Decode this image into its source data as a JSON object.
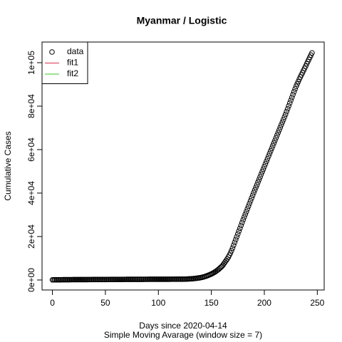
{
  "chart_data": {
    "type": "scatter",
    "title": "Myanmar / Logistic",
    "x_label": "Days since 2020-04-14",
    "subtitle": "Simple Moving Avarage (window size = 7)",
    "y_label": "Cumulative Cases",
    "xlim": [
      -9.8,
      256.5
    ],
    "ylim": [
      -4600,
      109500
    ],
    "xticks": [
      0,
      50,
      100,
      150,
      200,
      250
    ],
    "yticks": [
      {
        "value": 0,
        "label": "0e+00"
      },
      {
        "value": 20000,
        "label": "2e+04"
      },
      {
        "value": 40000,
        "label": "4e+04"
      },
      {
        "value": 60000,
        "label": "6e+04"
      },
      {
        "value": 80000,
        "label": "8e+04"
      },
      {
        "value": 100000,
        "label": "1e+05"
      }
    ],
    "legend_position": "topleft",
    "legend": [
      {
        "name": "data",
        "symbol": "circle",
        "color": "#000000"
      },
      {
        "name": "fit1",
        "symbol": "line",
        "color": "#df536b"
      },
      {
        "name": "fit2",
        "symbol": "line",
        "color": "#61d04f"
      }
    ],
    "series": [
      {
        "name": "data",
        "color": "#000000",
        "x": [
          0,
          1,
          2,
          3,
          4,
          5,
          6,
          7,
          8,
          9,
          10,
          11,
          12,
          13,
          14,
          15,
          16,
          17,
          18,
          19,
          20,
          21,
          22,
          23,
          24,
          25,
          26,
          27,
          28,
          29,
          30,
          31,
          32,
          33,
          34,
          35,
          36,
          37,
          38,
          39,
          40,
          41,
          42,
          43,
          44,
          45,
          46,
          47,
          48,
          49,
          50,
          51,
          52,
          53,
          54,
          55,
          56,
          57,
          58,
          59,
          60,
          61,
          62,
          63,
          64,
          65,
          66,
          67,
          68,
          69,
          70,
          71,
          72,
          73,
          74,
          75,
          76,
          77,
          78,
          79,
          80,
          81,
          82,
          83,
          84,
          85,
          86,
          87,
          88,
          89,
          90,
          91,
          92,
          93,
          94,
          95,
          96,
          97,
          98,
          99,
          100,
          101,
          102,
          103,
          104,
          105,
          106,
          107,
          108,
          109,
          110,
          111,
          112,
          113,
          114,
          115,
          116,
          117,
          118,
          119,
          120,
          121,
          122,
          123,
          124,
          125,
          126,
          127,
          128,
          129,
          130,
          131,
          132,
          133,
          134,
          135,
          136,
          137,
          138,
          139,
          140,
          141,
          142,
          143,
          144,
          145,
          146,
          147,
          148,
          149,
          150,
          151,
          152,
          153,
          154,
          155,
          156,
          157,
          158,
          159,
          160,
          161,
          162,
          163,
          164,
          165,
          166,
          167,
          168,
          169,
          170,
          171,
          172,
          173,
          174,
          175,
          176,
          177,
          178,
          179,
          180,
          181,
          182,
          183,
          184,
          185,
          186,
          187,
          188,
          189,
          190,
          191,
          192,
          193,
          194,
          195,
          196,
          197,
          198,
          199,
          200,
          201,
          202,
          203,
          204,
          205,
          206,
          207,
          208,
          209,
          210,
          211,
          212,
          213,
          214,
          215,
          216,
          217,
          218,
          219,
          220,
          221,
          222,
          223,
          224,
          225,
          226,
          227,
          228,
          229,
          230,
          231,
          232,
          233,
          234,
          235,
          236,
          237,
          238,
          239,
          240,
          241,
          242,
          243,
          244,
          245
        ],
        "values": [
          70,
          75,
          80,
          85,
          90,
          95,
          100,
          105,
          110,
          115,
          120,
          125,
          130,
          135,
          140,
          145,
          150,
          152,
          155,
          157,
          159,
          162,
          164,
          166,
          169,
          171,
          173,
          176,
          178,
          180,
          183,
          185,
          187,
          190,
          192,
          194,
          197,
          199,
          201,
          204,
          206,
          208,
          211,
          213,
          215,
          218,
          220,
          221,
          224,
          227,
          229,
          232,
          235,
          238,
          240,
          243,
          246,
          248,
          251,
          254,
          256,
          259,
          262,
          264,
          267,
          270,
          272,
          275,
          278,
          280,
          283,
          286,
          288,
          291,
          294,
          296,
          299,
          300,
          302,
          303,
          305,
          307,
          308,
          310,
          312,
          313,
          315,
          317,
          318,
          320,
          322,
          323,
          325,
          327,
          328,
          330,
          332,
          333,
          335,
          337,
          338,
          340,
          342,
          343,
          345,
          347,
          348,
          350,
          351,
          353,
          354,
          356,
          358,
          359,
          361,
          362,
          364,
          366,
          367,
          369,
          370,
          372,
          374,
          375,
          385,
          400,
          420,
          440,
          465,
          490,
          520,
          555,
          595,
          640,
          690,
          745,
          805,
          870,
          940,
          1010,
          1100,
          1200,
          1310,
          1440,
          1590,
          1760,
          1940,
          2130,
          2330,
          2540,
          2760,
          3000,
          3270,
          3560,
          3880,
          4220,
          4590,
          4990,
          5420,
          5880,
          6300,
          6900,
          7600,
          8300,
          9000,
          9700,
          10500,
          11400,
          12400,
          13500,
          14700,
          16000,
          17300,
          18600,
          19900,
          21200,
          22500,
          23800,
          25100,
          26400,
          27700,
          28950,
          30200,
          31450,
          32700,
          33950,
          35200,
          36450,
          37700,
          38950,
          40200,
          41400,
          42600,
          43800,
          45000,
          46200,
          47400,
          48600,
          49800,
          51000,
          52200,
          53400,
          54600,
          55800,
          57000,
          58200,
          59400,
          60600,
          61800,
          63000,
          64200,
          65400,
          66600,
          67800,
          69000,
          70200,
          71400,
          72600,
          73800,
          75000,
          76200,
          77500,
          78800,
          80100,
          81400,
          82700,
          84000,
          85300,
          86600,
          87900,
          89100,
          90200,
          91300,
          92400,
          93400,
          94400,
          95400,
          96400,
          97400,
          98400,
          99500,
          100500,
          101500,
          102500,
          103500,
          104500
        ]
      }
    ]
  }
}
